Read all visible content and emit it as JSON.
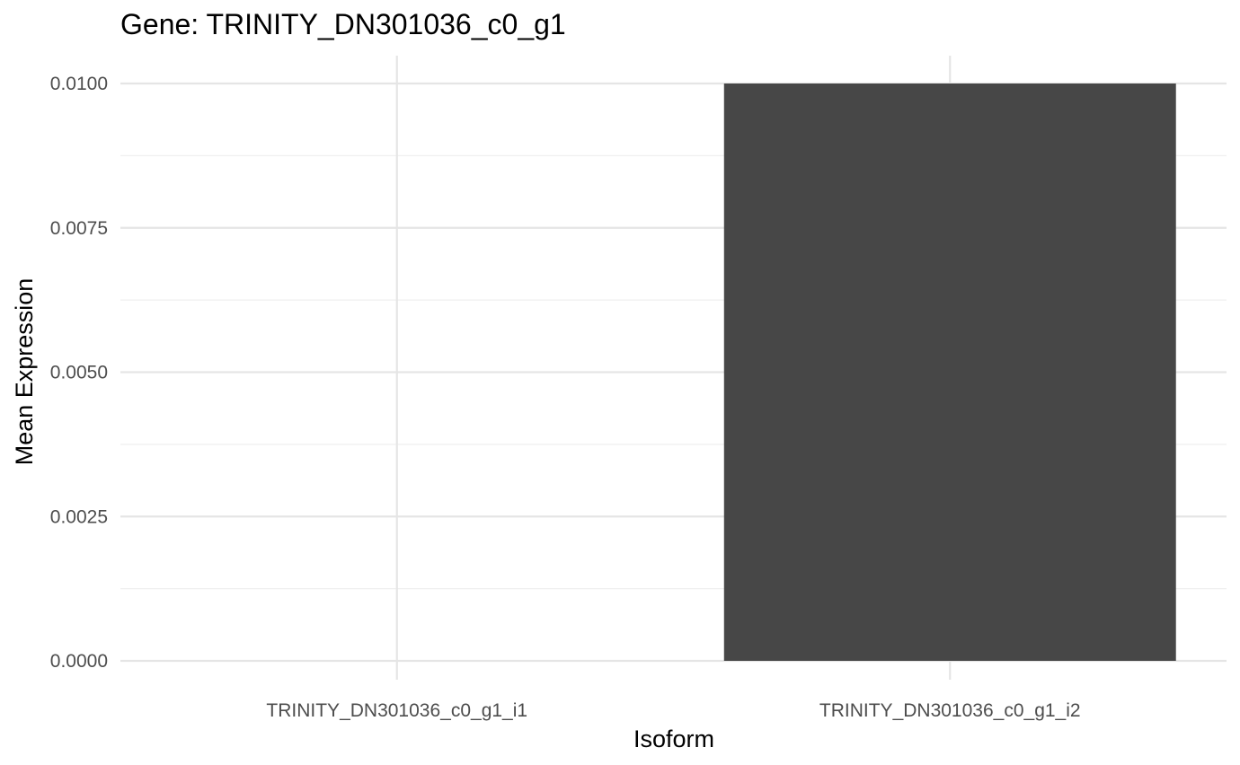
{
  "chart_data": {
    "type": "bar",
    "title": "Gene: TRINITY_DN301036_c0_g1",
    "xlabel": "Isoform",
    "ylabel": "Mean Expression",
    "categories": [
      "TRINITY_DN301036_c0_g1_i1",
      "TRINITY_DN301036_c0_g1_i2"
    ],
    "values": [
      0.0,
      0.01
    ],
    "ylim": [
      0.0,
      0.0105
    ],
    "yticks": [
      0.0,
      0.0025,
      0.005,
      0.0075,
      0.01
    ],
    "ytick_labels": [
      "0.0000",
      "0.0025",
      "0.0050",
      "0.0075",
      "0.0100"
    ],
    "grid": true,
    "legend": "none",
    "colors": {
      "bar": "#474747",
      "grid_major": "#e5e5e5",
      "grid_minor": "#efefef",
      "tick_text": "#4d4d4d",
      "text": "#000000",
      "background": "#ffffff"
    }
  }
}
